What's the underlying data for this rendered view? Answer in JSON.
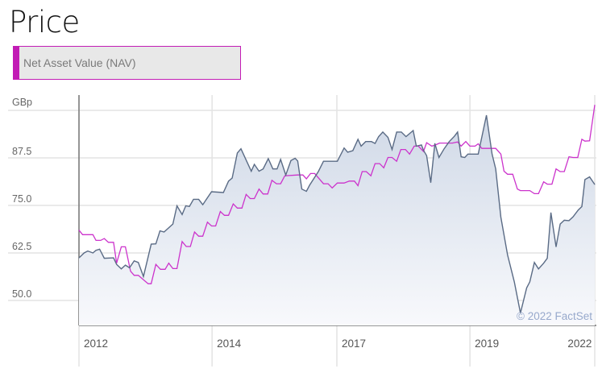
{
  "page": {
    "title": "Price"
  },
  "selector": {
    "label": "Net Asset Value (NAV)"
  },
  "colors": {
    "price": "#5a6b85",
    "nav": "#cc33cc",
    "accent": "#c21cb5",
    "fill_top": "#d0d9e7",
    "fill_bottom": "#f8f9fc"
  },
  "chart_data": {
    "type": "line",
    "title": "",
    "ylabel": "GBp",
    "xlabel": "",
    "ylim": [
      43.4,
      104
    ],
    "xlim": [
      0,
      100
    ],
    "grid": true,
    "y_ticks": [
      {
        "value": 50,
        "label": "50.0"
      },
      {
        "value": 62.5,
        "label": "62.5"
      },
      {
        "value": 75,
        "label": "75.0"
      },
      {
        "value": 87.5,
        "label": "87.5"
      },
      {
        "value": 100,
        "label": ""
      }
    ],
    "x_ticks": [
      {
        "at": 0,
        "label": "2012",
        "grid": false
      },
      {
        "at": 25.8,
        "label": "2014",
        "grid": true
      },
      {
        "at": 50,
        "label": "2017",
        "grid": true
      },
      {
        "at": 75.8,
        "label": "2019",
        "grid": true
      },
      {
        "at": 93.8,
        "label": "2022",
        "grid": false
      }
    ],
    "watermark": "© 2022 FactSet",
    "series": [
      {
        "name": "Price",
        "style": "area",
        "points": [
          [
            0,
            61.2
          ],
          [
            1,
            62.5
          ],
          [
            1.7,
            63
          ],
          [
            2.7,
            62.5
          ],
          [
            3.3,
            63.2
          ],
          [
            4,
            63.5
          ],
          [
            4.9,
            61.1
          ],
          [
            6.7,
            61.2
          ],
          [
            7.3,
            59.5
          ],
          [
            8.2,
            58.3
          ],
          [
            9,
            59.3
          ],
          [
            9.8,
            58.6
          ],
          [
            10.7,
            60.4
          ],
          [
            11.5,
            60
          ],
          [
            12.5,
            56.3
          ],
          [
            14,
            64.8
          ],
          [
            14.9,
            64.9
          ],
          [
            15.7,
            68.3
          ],
          [
            16.5,
            68
          ],
          [
            18.2,
            70.1
          ],
          [
            19,
            74.9
          ],
          [
            20,
            72.6
          ],
          [
            20.7,
            74.9
          ],
          [
            21.4,
            74.7
          ],
          [
            22.2,
            76.6
          ],
          [
            23.2,
            76.6
          ],
          [
            24,
            75.2
          ],
          [
            25.7,
            78.6
          ],
          [
            28,
            78.4
          ],
          [
            29,
            81.4
          ],
          [
            29.7,
            82.2
          ],
          [
            30.7,
            88.8
          ],
          [
            31.4,
            89.9
          ],
          [
            33.4,
            84
          ],
          [
            34,
            85.8
          ],
          [
            34.9,
            84
          ],
          [
            35.7,
            84.6
          ],
          [
            36.7,
            87.3
          ],
          [
            37.6,
            84.6
          ],
          [
            38.4,
            84.6
          ],
          [
            39.1,
            87.1
          ],
          [
            40.1,
            83
          ],
          [
            41.1,
            86.8
          ],
          [
            41.9,
            87.4
          ],
          [
            42.4,
            86.7
          ],
          [
            43.2,
            79.3
          ],
          [
            44.1,
            78.7
          ],
          [
            44.7,
            80.3
          ],
          [
            46.4,
            83.9
          ],
          [
            47.4,
            86.6
          ],
          [
            50.1,
            86.6
          ],
          [
            51.4,
            90.1
          ],
          [
            52.1,
            89
          ],
          [
            53.1,
            89.4
          ],
          [
            54.1,
            92.4
          ],
          [
            54.7,
            90.6
          ],
          [
            55.6,
            91.8
          ],
          [
            56.7,
            91.8
          ],
          [
            57.4,
            91.3
          ],
          [
            58.1,
            93.1
          ],
          [
            58.9,
            94.3
          ],
          [
            59.9,
            92.9
          ],
          [
            60.7,
            89.7
          ],
          [
            61.6,
            94.3
          ],
          [
            62.5,
            94.3
          ],
          [
            63.4,
            93.1
          ],
          [
            64.8,
            94.7
          ],
          [
            65.4,
            90.6
          ],
          [
            66.4,
            90.9
          ],
          [
            66.8,
            89.5
          ],
          [
            67.4,
            88.1
          ],
          [
            68.2,
            81
          ],
          [
            69,
            91.3
          ],
          [
            69.8,
            87.6
          ],
          [
            70.8,
            89.9
          ],
          [
            71.8,
            91.8
          ],
          [
            72.8,
            93.2
          ],
          [
            73.4,
            94.3
          ],
          [
            74.1,
            87.8
          ],
          [
            74.8,
            87.6
          ],
          [
            75.4,
            88.5
          ],
          [
            77.4,
            88.5
          ],
          [
            79,
            98.7
          ],
          [
            80.1,
            88.5
          ],
          [
            80.8,
            84.6
          ],
          [
            81.8,
            71.9
          ],
          [
            83.1,
            62
          ],
          [
            84.4,
            54.9
          ],
          [
            85.6,
            46.7
          ],
          [
            86.8,
            53.3
          ],
          [
            87.4,
            54.9
          ],
          [
            88.3,
            60
          ],
          [
            89.1,
            58.3
          ],
          [
            90.1,
            59.8
          ],
          [
            90.8,
            61.1
          ],
          [
            91.5,
            73.1
          ],
          [
            92.5,
            64.1
          ],
          [
            93.3,
            70.1
          ],
          [
            94.1,
            71.1
          ],
          [
            95,
            71
          ],
          [
            95.8,
            72
          ],
          [
            96.8,
            73.8
          ],
          [
            97.5,
            74.7
          ],
          [
            98.1,
            81.8
          ],
          [
            99,
            82.5
          ],
          [
            100,
            80.5
          ]
        ]
      },
      {
        "name": "Net Asset Value (NAV)",
        "style": "line",
        "points": [
          [
            0,
            68.5
          ],
          [
            0.7,
            67.3
          ],
          [
            2.7,
            67.3
          ],
          [
            3.3,
            65.8
          ],
          [
            4.2,
            65.8
          ],
          [
            4.9,
            66.3
          ],
          [
            5.7,
            65.3
          ],
          [
            6.7,
            65.3
          ],
          [
            7.3,
            59.8
          ],
          [
            8.2,
            64.1
          ],
          [
            9,
            64.1
          ],
          [
            10,
            57.7
          ],
          [
            10.7,
            56.6
          ],
          [
            11.5,
            56.6
          ],
          [
            13.4,
            54.4
          ],
          [
            14,
            54.4
          ],
          [
            14.9,
            59.5
          ],
          [
            15.8,
            58.2
          ],
          [
            16.7,
            58.2
          ],
          [
            17.4,
            59.8
          ],
          [
            18.2,
            58.4
          ],
          [
            19,
            58.4
          ],
          [
            20,
            65.5
          ],
          [
            20.8,
            64.2
          ],
          [
            21.6,
            64.2
          ],
          [
            22.4,
            68
          ],
          [
            23.2,
            66.9
          ],
          [
            24,
            66.9
          ],
          [
            24.9,
            70.6
          ],
          [
            25.7,
            69.6
          ],
          [
            26.5,
            69.6
          ],
          [
            27.4,
            73.4
          ],
          [
            28.2,
            72.4
          ],
          [
            29,
            72.4
          ],
          [
            29.9,
            75.4
          ],
          [
            30.7,
            74.3
          ],
          [
            31.6,
            74.3
          ],
          [
            32.4,
            77.9
          ],
          [
            33.2,
            76.8
          ],
          [
            34,
            76.8
          ],
          [
            34.9,
            79.3
          ],
          [
            35.7,
            78
          ],
          [
            36.6,
            78
          ],
          [
            37.4,
            81.6
          ],
          [
            38.3,
            80.7
          ],
          [
            39.1,
            80.7
          ],
          [
            39.9,
            82.8
          ],
          [
            42.4,
            83
          ],
          [
            43.4,
            83
          ],
          [
            44.1,
            82
          ],
          [
            44.9,
            83.4
          ],
          [
            45.7,
            83.4
          ],
          [
            47.4,
            80.7
          ],
          [
            48.3,
            80.7
          ],
          [
            49.1,
            79.6
          ],
          [
            50.1,
            80.9
          ],
          [
            51.4,
            80.9
          ],
          [
            52.4,
            81.4
          ],
          [
            53.4,
            81.4
          ],
          [
            54.1,
            80.2
          ],
          [
            54.9,
            83.9
          ],
          [
            55.7,
            83.9
          ],
          [
            56.6,
            82.8
          ],
          [
            57.4,
            86
          ],
          [
            58.3,
            86
          ],
          [
            59.1,
            84.9
          ],
          [
            59.9,
            87.6
          ],
          [
            60.7,
            87.6
          ],
          [
            61.6,
            86.6
          ],
          [
            62.4,
            89.7
          ],
          [
            63.3,
            89.7
          ],
          [
            64.1,
            88.5
          ],
          [
            65,
            90.6
          ],
          [
            65.8,
            90.6
          ],
          [
            66.8,
            89.2
          ],
          [
            67.4,
            91.5
          ],
          [
            68.4,
            90.6
          ],
          [
            69.1,
            90.9
          ],
          [
            69.9,
            91.4
          ],
          [
            72.4,
            91.4
          ],
          [
            73.4,
            91.7
          ],
          [
            74.1,
            90.6
          ],
          [
            75,
            91.8
          ],
          [
            75.8,
            90.6
          ],
          [
            76.8,
            90.6
          ],
          [
            77.4,
            91.2
          ],
          [
            78.1,
            90
          ],
          [
            80.8,
            90
          ],
          [
            81.8,
            88.5
          ],
          [
            82.4,
            84
          ],
          [
            83.1,
            83.2
          ],
          [
            84.1,
            83.2
          ],
          [
            85,
            79.3
          ],
          [
            85.6,
            78.9
          ],
          [
            87.4,
            78.9
          ],
          [
            88.3,
            78.1
          ],
          [
            89.1,
            78.1
          ],
          [
            90.1,
            81.2
          ],
          [
            90.8,
            80.6
          ],
          [
            91.7,
            80.6
          ],
          [
            92.5,
            84.6
          ],
          [
            93.3,
            83.9
          ],
          [
            94.1,
            83.9
          ],
          [
            95,
            87.8
          ],
          [
            95.8,
            87.6
          ],
          [
            96.7,
            87.6
          ],
          [
            97.5,
            92.4
          ],
          [
            98.1,
            91.9
          ],
          [
            99,
            92
          ],
          [
            100,
            101.4
          ]
        ]
      }
    ]
  }
}
